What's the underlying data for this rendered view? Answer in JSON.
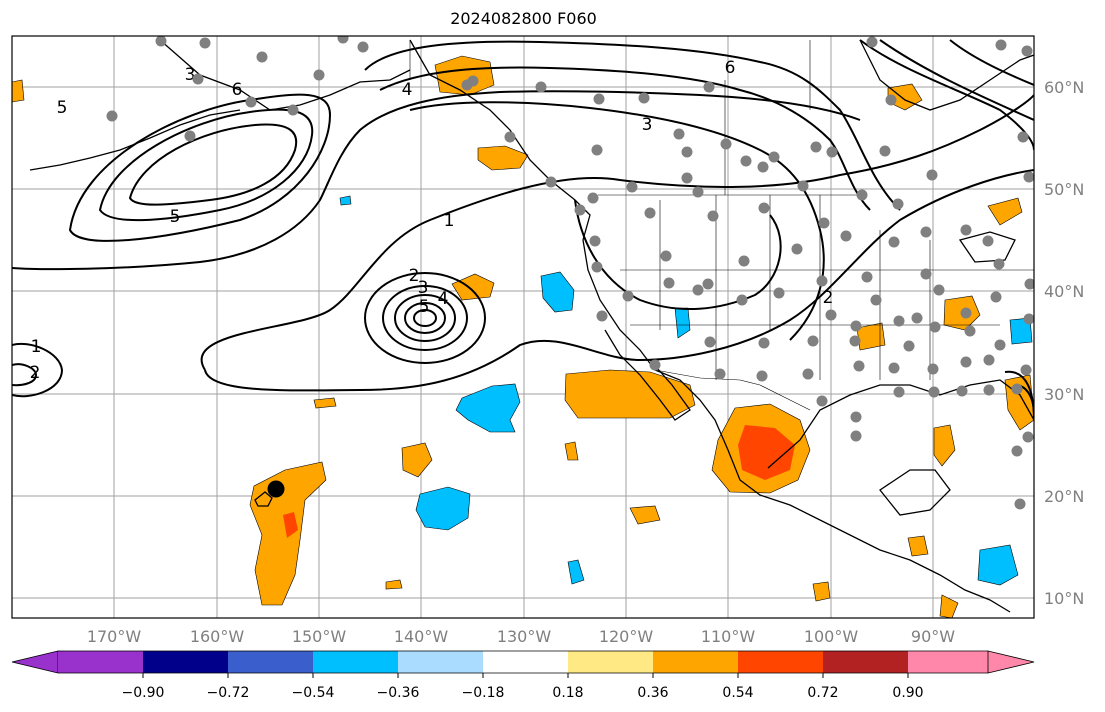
{
  "title": "2024082800 F060",
  "colors": {
    "frame": "#000000",
    "grid": "#a0a0a0",
    "land": "#000000",
    "contour": "#000000",
    "station_dot": "#808080",
    "orange": "#ffa500",
    "red_orange": "#ff4500",
    "dark_red": "#b22222",
    "deep_sky_blue": "#00bfff",
    "light_sky_blue": "#aadcff",
    "light_yellow": "#ffe985",
    "pink": "#ff88aa",
    "purple": "#9932cc",
    "navy": "#00008b",
    "royal_blue": "#3a5fcd"
  },
  "axes": {
    "lon_labels": [
      "170°W",
      "160°W",
      "150°W",
      "140°W",
      "130°W",
      "120°W",
      "110°W",
      "100°W",
      "90°W"
    ],
    "lat_labels": [
      "60°N",
      "50°N",
      "40°N",
      "30°N",
      "20°N",
      "10°N"
    ]
  },
  "colorbar": {
    "ticks": [
      "−0.90",
      "−0.72",
      "−0.54",
      "−0.36",
      "−0.18",
      "0.18",
      "0.36",
      "0.54",
      "0.72",
      "0.90"
    ],
    "colors": [
      "#9932cc",
      "#00008b",
      "#3a5fcd",
      "#00bfff",
      "#aadcff",
      "#ffffff",
      "#ffe985",
      "#ffa500",
      "#ff4500",
      "#b22222",
      "#ff88aa"
    ]
  },
  "contour_labels": [
    "6",
    "5",
    "4",
    "3",
    "2",
    "1"
  ],
  "marker": "storm-center"
}
